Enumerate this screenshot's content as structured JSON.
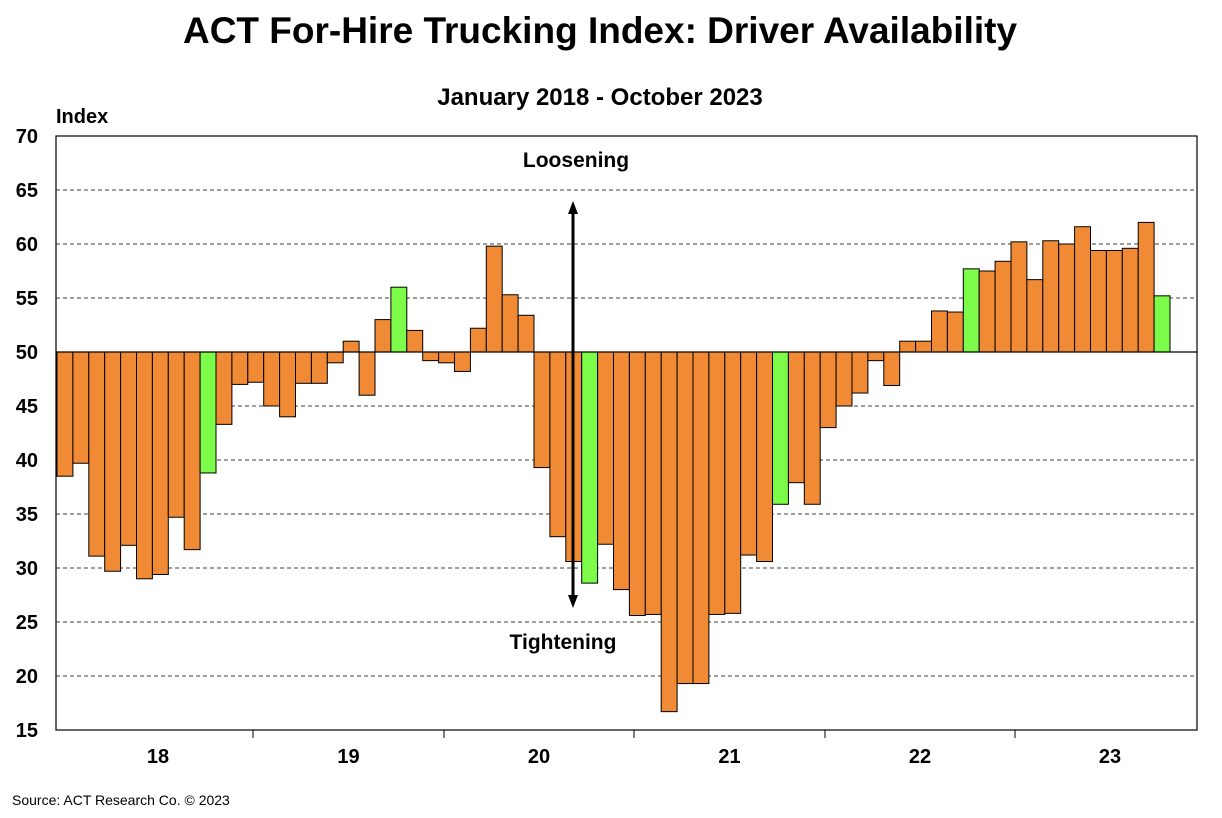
{
  "colors": {
    "orange": "#F08A35",
    "green": "#7CFC48",
    "stroke": "#000000",
    "grid": "#000000"
  },
  "chart_data": {
    "type": "bar",
    "title": "ACT For-Hire Trucking Index: Driver Availability",
    "subtitle": "January 2018 - October 2023",
    "ylabel": "Index",
    "xlabel": "",
    "ylim": [
      15,
      70
    ],
    "yticks": [
      15,
      20,
      25,
      30,
      35,
      40,
      45,
      50,
      55,
      60,
      65,
      70
    ],
    "baseline": 50,
    "grid": "horizontal dashed",
    "xtick_labels": [
      "18",
      "19",
      "20",
      "21",
      "22",
      "23"
    ],
    "annotations": {
      "up": "Loosening",
      "down": "Tightening"
    },
    "series": [
      {
        "values": [
          38.5,
          39.7,
          31.1,
          29.7,
          32.1,
          29.0,
          29.4,
          34.7,
          31.7,
          38.8,
          43.3,
          47.0,
          47.2,
          45.0,
          44.0,
          47.1,
          47.1,
          49.0,
          51.0,
          46.0,
          53.0,
          56.0,
          52.0,
          49.2,
          49.0,
          48.2,
          52.2,
          59.8,
          55.3,
          53.4,
          39.3,
          32.9,
          30.6,
          28.6,
          32.2,
          28.0,
          25.6,
          25.7,
          16.7,
          19.3,
          19.3,
          25.7,
          25.8,
          31.2,
          30.6,
          35.9,
          37.9,
          35.9,
          43.0,
          45.0,
          46.2,
          49.2,
          46.9,
          51.0,
          51.0,
          53.8,
          53.7,
          57.7,
          57.5,
          58.4,
          60.2,
          56.7,
          60.3,
          60.0,
          61.6,
          59.4,
          59.4,
          59.6,
          62.0,
          55.2
        ],
        "colors": [
          "orange",
          "orange",
          "orange",
          "orange",
          "orange",
          "orange",
          "orange",
          "orange",
          "orange",
          "green",
          "orange",
          "orange",
          "orange",
          "orange",
          "orange",
          "orange",
          "orange",
          "orange",
          "orange",
          "orange",
          "orange",
          "green",
          "orange",
          "orange",
          "orange",
          "orange",
          "orange",
          "orange",
          "orange",
          "orange",
          "orange",
          "orange",
          "orange",
          "green",
          "orange",
          "orange",
          "orange",
          "orange",
          "orange",
          "orange",
          "orange",
          "orange",
          "orange",
          "orange",
          "orange",
          "green",
          "orange",
          "orange",
          "orange",
          "orange",
          "orange",
          "orange",
          "orange",
          "orange",
          "orange",
          "orange",
          "orange",
          "green",
          "orange",
          "orange",
          "orange",
          "orange",
          "orange",
          "orange",
          "orange",
          "orange",
          "orange",
          "orange",
          "orange",
          "green"
        ]
      }
    ]
  },
  "source": "Source: ACT Research Co. © 2023"
}
